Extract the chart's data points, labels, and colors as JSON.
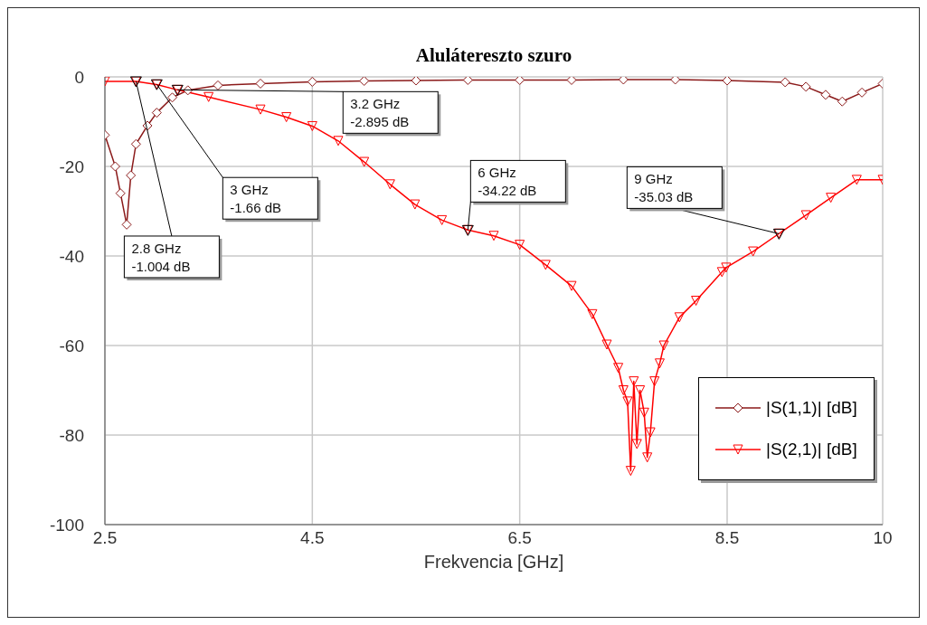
{
  "chart_data": {
    "type": "line",
    "title": "Alulátereszto szuro",
    "xlabel": "Frekvencia [GHz]",
    "xlim": [
      2.5,
      10
    ],
    "xticks": [
      2.5,
      4.5,
      6.5,
      8.5,
      10
    ],
    "ylim": [
      -100,
      0
    ],
    "yticks": [
      0,
      -20,
      -40,
      -60,
      -80,
      -100
    ],
    "grid": true,
    "legend": "bottom right",
    "series": [
      {
        "name": "|S(1,1)| [dB]",
        "color": "#8b1a1a",
        "marker": "diamond",
        "x": [
          2.5,
          2.6,
          2.65,
          2.71,
          2.75,
          2.8,
          2.91,
          3.0,
          3.15,
          3.3,
          3.59,
          4.0,
          4.5,
          5.0,
          5.5,
          6.0,
          6.5,
          7.0,
          7.5,
          8.0,
          8.5,
          9.06,
          9.26,
          9.45,
          9.61,
          9.8,
          10
        ],
        "values": [
          -13,
          -20,
          -26,
          -33,
          -22,
          -15,
          -10.9,
          -8,
          -4.6,
          -3,
          -1.9,
          -1.5,
          -1.1,
          -0.9,
          -0.8,
          -0.7,
          -0.7,
          -0.7,
          -0.6,
          -0.6,
          -0.8,
          -1.2,
          -2.2,
          -4,
          -5.5,
          -3.5,
          -1.5
        ]
      },
      {
        "name": "|S(2,1)| [dB]",
        "color": "#ff0000",
        "marker": "triangle",
        "x": [
          2.5,
          2.8,
          3.0,
          3.2,
          3.5,
          4.0,
          4.25,
          4.5,
          4.75,
          5.0,
          5.25,
          5.49,
          5.75,
          6.0,
          6.25,
          6.5,
          6.75,
          7.0,
          7.2,
          7.34,
          7.45,
          7.5,
          7.54,
          7.57,
          7.6,
          7.63,
          7.66,
          7.7,
          7.73,
          7.76,
          7.8,
          7.85,
          7.89,
          8.04,
          8.2,
          8.45,
          8.49,
          8.75,
          9.0,
          9.26,
          9.5,
          9.75,
          10
        ],
        "values": [
          -1,
          -1.0,
          -1.7,
          -2.9,
          -4.5,
          -7.3,
          -9,
          -11,
          -14.3,
          -19,
          -24,
          -28.5,
          -32,
          -34.2,
          -35.5,
          -37.5,
          -42,
          -46.7,
          -53,
          -59.8,
          -65,
          -70,
          -72.5,
          -88,
          -68,
          -82,
          -70,
          -75,
          -85,
          -79.4,
          -68,
          -64,
          -60,
          -53.7,
          -50,
          -43.6,
          -42.6,
          -39,
          -35.0,
          -30.9,
          -27,
          -23,
          -23
        ]
      }
    ],
    "annotations": [
      {
        "text": "2.8 GHz\n-1.004 dB",
        "x": 2.8,
        "y": -1.004
      },
      {
        "text": "3 GHz\n-1.66 dB",
        "x": 3.0,
        "y": -1.66
      },
      {
        "text": "3.2 GHz\n-2.895 dB",
        "x": 3.2,
        "y": -2.895
      },
      {
        "text": "6 GHz\n-34.22 dB",
        "x": 6.0,
        "y": -34.22
      },
      {
        "text": "9 GHz\n-35.03 dB",
        "x": 9.0,
        "y": -35.03
      }
    ]
  }
}
